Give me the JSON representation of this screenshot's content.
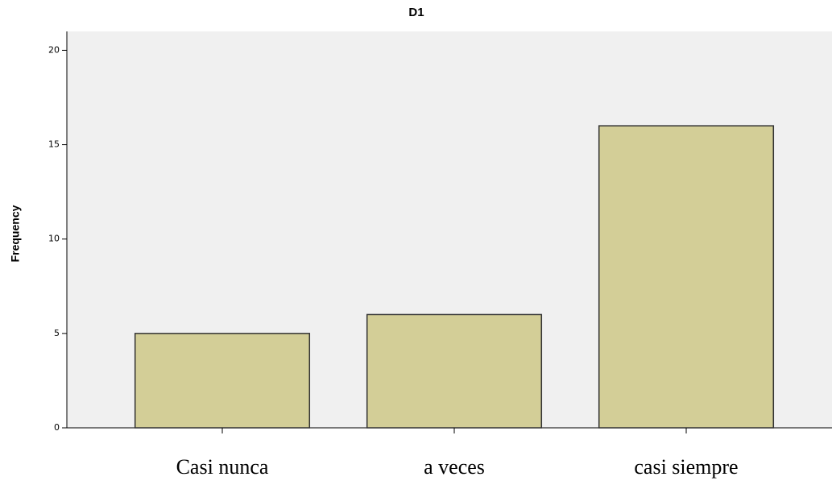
{
  "chart_data": {
    "type": "bar",
    "title": "D1",
    "y_label": "Frequency",
    "categories": [
      "Casi nunca",
      "a veces",
      "casi siempre"
    ],
    "values": [
      5,
      6,
      16
    ],
    "color": "#d3ce97",
    "ylim": [
      0,
      21
    ],
    "yticks": [
      0,
      5,
      10,
      15,
      20
    ]
  }
}
